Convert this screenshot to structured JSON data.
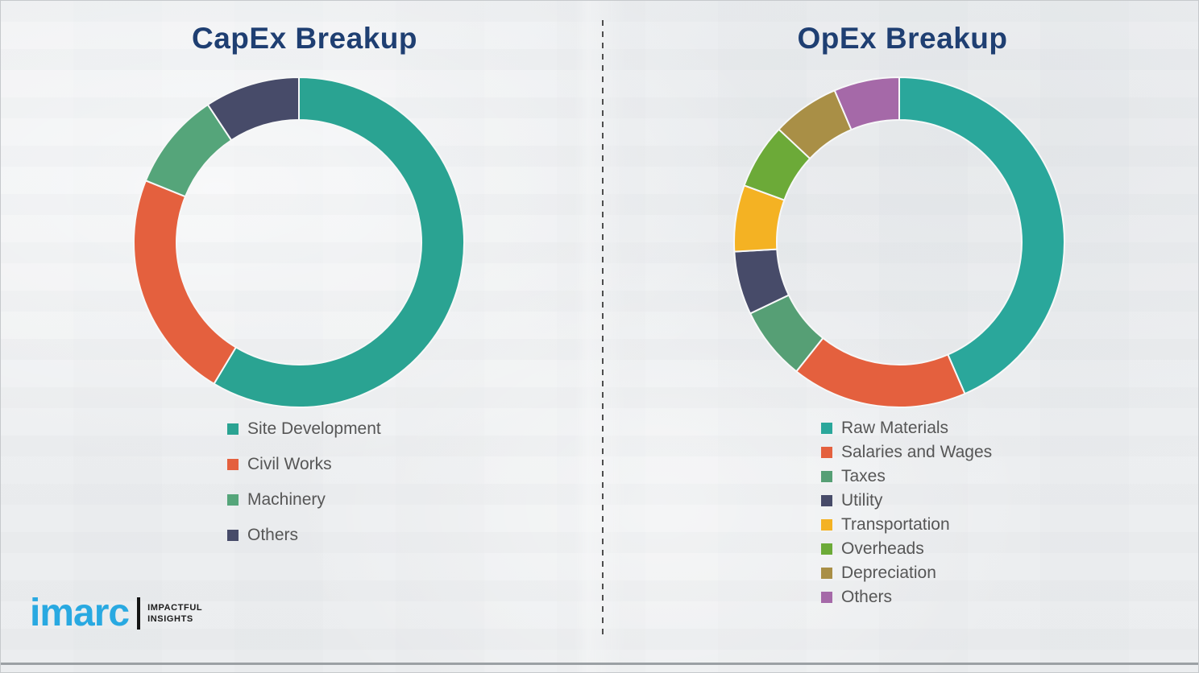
{
  "logo": {
    "brand": "imarc",
    "tagline_line1": "IMPACTFUL",
    "tagline_line2": "INSIGHTS",
    "brand_color": "#29a9e1"
  },
  "chart_data": [
    {
      "type": "pie",
      "variant": "donut",
      "title": "CapEx Breakup",
      "title_color": "#1f3f72",
      "start_angle_deg": 0,
      "direction": "clockwise",
      "legend_position": "below-left",
      "categories": [
        "Site Development",
        "Civil Works",
        "Machinery",
        "Others"
      ],
      "values": [
        58.6,
        22.5,
        9.6,
        9.3
      ],
      "colors": [
        "#2aa392",
        "#e4603e",
        "#55a57a",
        "#474b69"
      ]
    },
    {
      "type": "pie",
      "variant": "donut",
      "title": "OpEx Breakup",
      "title_color": "#1f3f72",
      "start_angle_deg": 0,
      "direction": "clockwise",
      "legend_position": "below-left",
      "categories": [
        "Raw Materials",
        "Salaries and Wages",
        "Taxes",
        "Utility",
        "Transportation",
        "Overheads",
        "Depreciation",
        "Others"
      ],
      "values": [
        43.5,
        17.2,
        7.2,
        6.2,
        6.5,
        6.4,
        6.6,
        6.4
      ],
      "colors": [
        "#2aa79b",
        "#e4603e",
        "#569f75",
        "#474b69",
        "#f4b223",
        "#6caa38",
        "#a98f46",
        "#a569a8"
      ]
    }
  ]
}
